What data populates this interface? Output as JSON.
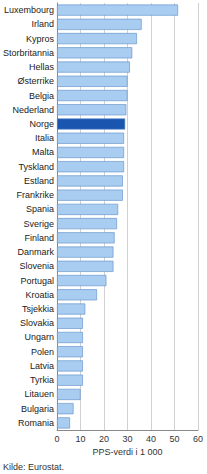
{
  "chart_data": {
    "type": "bar",
    "orientation": "horizontal",
    "categories": [
      "Luxembourg",
      "Irland",
      "Kypros",
      "Storbritannia",
      "Hellas",
      "Østerrike",
      "Belgia",
      "Nederland",
      "Norge",
      "Italia",
      "Malta",
      "Tyskland",
      "Estland",
      "Frankrike",
      "Spania",
      "Sverige",
      "Finland",
      "Danmark",
      "Slovenia",
      "Portugal",
      "Kroatia",
      "Tsjekkia",
      "Slovakia",
      "Ungarn",
      "Polen",
      "Latvia",
      "Tyrkia",
      "Litauen",
      "Bulgaria",
      "Romania"
    ],
    "values": [
      51.5,
      36,
      34,
      32,
      31,
      30,
      30,
      29.5,
      29,
      28.5,
      28.5,
      28.5,
      28,
      28,
      26,
      25.5,
      24.5,
      24,
      24,
      21,
      17,
      12,
      11,
      11,
      11,
      11,
      11,
      10,
      7,
      5.5
    ],
    "colors": [
      "#a9cdf0",
      "#a9cdf0",
      "#a9cdf0",
      "#a9cdf0",
      "#a9cdf0",
      "#a9cdf0",
      "#a9cdf0",
      "#a9cdf0",
      "#1a56b0",
      "#a9cdf0",
      "#a9cdf0",
      "#a9cdf0",
      "#a9cdf0",
      "#a9cdf0",
      "#a9cdf0",
      "#a9cdf0",
      "#a9cdf0",
      "#a9cdf0",
      "#a9cdf0",
      "#a9cdf0",
      "#a9cdf0",
      "#a9cdf0",
      "#a9cdf0",
      "#a9cdf0",
      "#a9cdf0",
      "#a9cdf0",
      "#a9cdf0",
      "#a9cdf0",
      "#a9cdf0",
      "#a9cdf0"
    ],
    "xlabel": "PPS-verdi i 1 000",
    "xlim": [
      0,
      60
    ],
    "xticks": [
      0,
      10,
      20,
      30,
      40,
      50,
      60
    ],
    "grid": true,
    "annotation": "Kilde: Eurostat."
  }
}
